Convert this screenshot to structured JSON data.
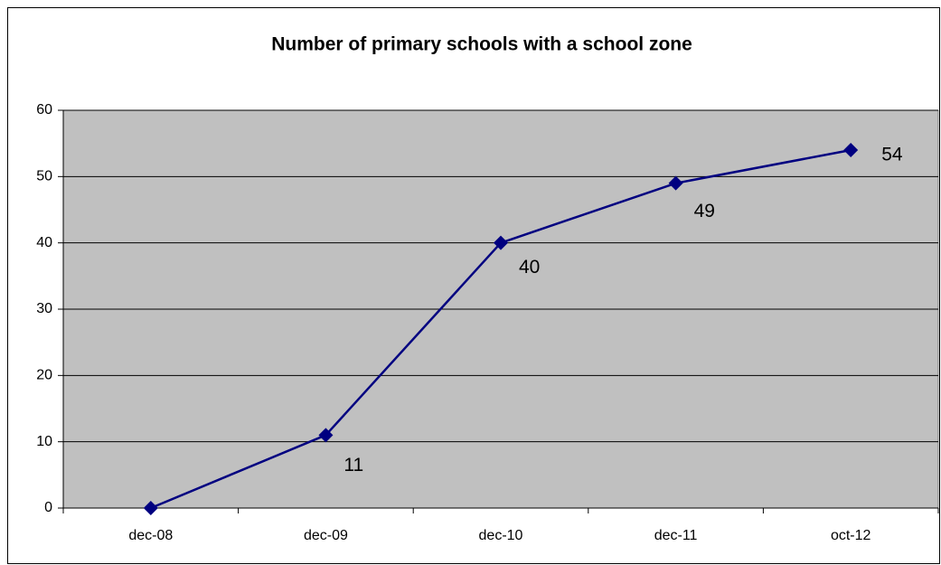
{
  "chart_data": {
    "type": "line",
    "title": "Number of primary schools with a school zone",
    "categories": [
      "dec-08",
      "dec-09",
      "dec-10",
      "dec-11",
      "oct-12"
    ],
    "series": [
      {
        "name": "Number of primary schools with a school zone",
        "color": "#000080",
        "values": [
          0,
          11,
          40,
          49,
          54
        ],
        "value_labels": [
          null,
          "11",
          "40",
          "49",
          "54"
        ]
      }
    ],
    "ylim": [
      0,
      60
    ],
    "yticks": [
      0,
      10,
      20,
      30,
      40,
      50,
      60
    ],
    "grid": true,
    "plot_background": "#c0c0c0",
    "marker": "diamond",
    "legend": false
  }
}
